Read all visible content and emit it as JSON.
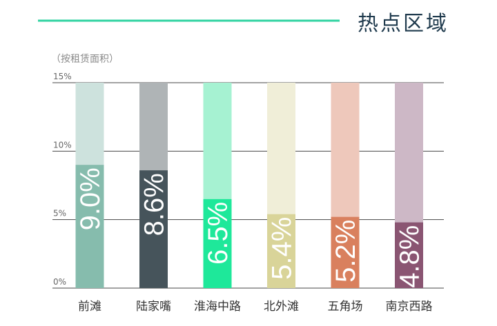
{
  "title": "热点区域",
  "colors": {
    "accent_line": "#2fd3a0",
    "grid": "#444444",
    "title": "#1f3a4d"
  },
  "chart_data": {
    "type": "bar",
    "title": "热点区域",
    "subtitle": "（按租赁面积）",
    "xlabel": "",
    "ylabel": "",
    "ylim": [
      0,
      15
    ],
    "yticks": [
      0,
      5,
      10,
      15
    ],
    "ytick_labels": [
      "0%",
      "5%",
      "10%",
      "15%"
    ],
    "grid": true,
    "categories": [
      "前滩",
      "陆家嘴",
      "淮海中路",
      "北外滩",
      "五角场",
      "南京西路"
    ],
    "values": [
      9.0,
      8.6,
      6.5,
      5.4,
      5.2,
      4.8
    ],
    "value_labels": [
      "9.0%",
      "8.6%",
      "6.5%",
      "5.4%",
      "5.2%",
      "4.8%"
    ],
    "bar_colors": [
      "#86bcad",
      "#46545b",
      "#1ee89a",
      "#d9d499",
      "#d9805e",
      "#8a5572"
    ],
    "track_colors": [
      "#cde2dd",
      "#afb4b6",
      "#a6f2d2",
      "#f0eed8",
      "#eec8bb",
      "#cdb8c6"
    ]
  }
}
